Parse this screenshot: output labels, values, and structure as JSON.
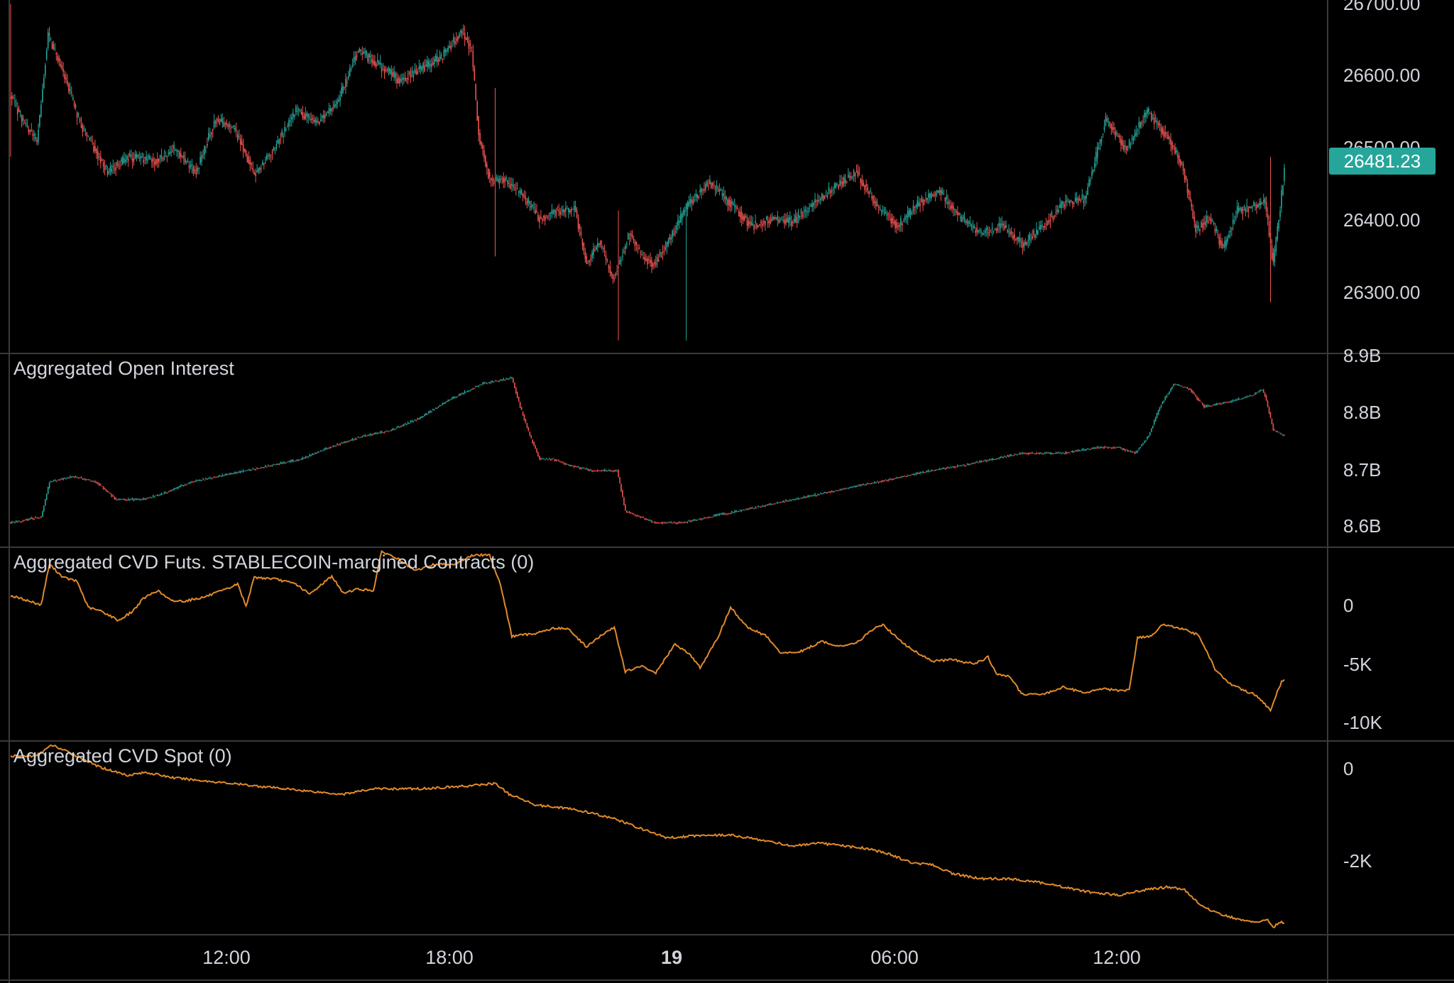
{
  "colors": {
    "background": "#000000",
    "up": "#26a69a",
    "down": "#ef5350",
    "cvd_line": "#e08a2c",
    "grid": "#3a3a3a",
    "axis_text": "#d1d4dc",
    "pane_title": "#d1d4dc",
    "price_tag_bg": "#26a69a",
    "price_tag_text": "#ffffff"
  },
  "price_tag": "26481.23",
  "chart_data": [
    {
      "type": "candlestick",
      "pane": "price",
      "title": "",
      "y_ticks": [
        "26700.00",
        "26600.00",
        "26500.00",
        "26400.00",
        "26300.00"
      ],
      "ylim": [
        26245,
        26705
      ],
      "last_price": 26481.23,
      "x_ticks": [
        "12:00",
        "18:00",
        "19",
        "06:00",
        "12:00"
      ],
      "anchors": [
        [
          0,
          26580
        ],
        [
          9,
          26545
        ],
        [
          19,
          26520
        ],
        [
          27,
          26660
        ],
        [
          38,
          26610
        ],
        [
          50,
          26545
        ],
        [
          70,
          26480
        ],
        [
          86,
          26500
        ],
        [
          104,
          26495
        ],
        [
          118,
          26510
        ],
        [
          134,
          26480
        ],
        [
          148,
          26550
        ],
        [
          162,
          26535
        ],
        [
          176,
          26478
        ],
        [
          190,
          26510
        ],
        [
          206,
          26560
        ],
        [
          221,
          26545
        ],
        [
          236,
          26570
        ],
        [
          251,
          26640
        ],
        [
          266,
          26620
        ],
        [
          281,
          26600
        ],
        [
          296,
          26615
        ],
        [
          311,
          26630
        ],
        [
          326,
          26665
        ],
        [
          333,
          26640
        ],
        [
          338,
          26530
        ],
        [
          346,
          26470
        ],
        [
          356,
          26470
        ],
        [
          370,
          26450
        ],
        [
          382,
          26420
        ],
        [
          396,
          26430
        ],
        [
          408,
          26430
        ],
        [
          416,
          26360
        ],
        [
          425,
          26390
        ],
        [
          435,
          26340
        ],
        [
          447,
          26400
        ],
        [
          456,
          26370
        ],
        [
          465,
          26360
        ],
        [
          475,
          26390
        ],
        [
          490,
          26440
        ],
        [
          505,
          26465
        ],
        [
          520,
          26440
        ],
        [
          535,
          26410
        ],
        [
          550,
          26420
        ],
        [
          565,
          26415
        ],
        [
          580,
          26440
        ],
        [
          595,
          26460
        ],
        [
          611,
          26480
        ],
        [
          626,
          26435
        ],
        [
          641,
          26410
        ],
        [
          656,
          26440
        ],
        [
          671,
          26455
        ],
        [
          686,
          26420
        ],
        [
          701,
          26400
        ],
        [
          716,
          26410
        ],
        [
          731,
          26385
        ],
        [
          746,
          26410
        ],
        [
          761,
          26440
        ],
        [
          776,
          26445
        ],
        [
          791,
          26550
        ],
        [
          806,
          26510
        ],
        [
          821,
          26560
        ],
        [
          836,
          26525
        ],
        [
          846,
          26490
        ],
        [
          856,
          26405
        ],
        [
          866,
          26420
        ],
        [
          876,
          26380
        ],
        [
          886,
          26430
        ],
        [
          896,
          26435
        ],
        [
          906,
          26440
        ],
        [
          912,
          26360
        ],
        [
          920,
          26481
        ]
      ],
      "wicks": [
        [
          0,
          26700,
          26500
        ],
        [
          350,
          26590,
          26370
        ],
        [
          439,
          26430,
          26260
        ],
        [
          488,
          26440,
          26260
        ],
        [
          910,
          26500,
          26310
        ]
      ]
    },
    {
      "type": "candlestick",
      "pane": "open_interest",
      "title": "Aggregated Open Interest",
      "y_ticks": [
        "8.9B",
        "8.8B",
        "8.7B",
        "8.6B"
      ],
      "ylim": [
        8.57,
        8.9
      ],
      "anchors": [
        [
          0,
          8.61
        ],
        [
          22,
          8.62
        ],
        [
          28,
          8.68
        ],
        [
          45,
          8.69
        ],
        [
          62,
          8.68
        ],
        [
          76,
          8.65
        ],
        [
          95,
          8.65
        ],
        [
          110,
          8.66
        ],
        [
          130,
          8.68
        ],
        [
          150,
          8.69
        ],
        [
          170,
          8.7
        ],
        [
          190,
          8.71
        ],
        [
          210,
          8.72
        ],
        [
          230,
          8.74
        ],
        [
          255,
          8.76
        ],
        [
          275,
          8.77
        ],
        [
          295,
          8.79
        ],
        [
          315,
          8.82
        ],
        [
          340,
          8.85
        ],
        [
          362,
          8.86
        ],
        [
          368,
          8.81
        ],
        [
          375,
          8.76
        ],
        [
          382,
          8.72
        ],
        [
          392,
          8.72
        ],
        [
          402,
          8.71
        ],
        [
          420,
          8.7
        ],
        [
          438,
          8.7
        ],
        [
          444,
          8.63
        ],
        [
          465,
          8.61
        ],
        [
          485,
          8.61
        ],
        [
          505,
          8.62
        ],
        [
          525,
          8.63
        ],
        [
          545,
          8.64
        ],
        [
          565,
          8.65
        ],
        [
          585,
          8.66
        ],
        [
          605,
          8.67
        ],
        [
          625,
          8.68
        ],
        [
          645,
          8.69
        ],
        [
          665,
          8.7
        ],
        [
          690,
          8.71
        ],
        [
          710,
          8.72
        ],
        [
          730,
          8.73
        ],
        [
          760,
          8.73
        ],
        [
          785,
          8.74
        ],
        [
          800,
          8.74
        ],
        [
          812,
          8.73
        ],
        [
          822,
          8.76
        ],
        [
          830,
          8.81
        ],
        [
          840,
          8.85
        ],
        [
          852,
          8.84
        ],
        [
          862,
          8.81
        ],
        [
          882,
          8.82
        ],
        [
          896,
          8.83
        ],
        [
          904,
          8.84
        ],
        [
          906,
          8.83
        ],
        [
          912,
          8.77
        ],
        [
          920,
          8.76
        ]
      ]
    },
    {
      "type": "line",
      "pane": "cvd_futures",
      "title": "Aggregated CVD Futs. STABLECOIN-margined Contracts (0)",
      "y_ticks": [
        "0",
        "-5K",
        "-10K"
      ],
      "ylim": [
        -11600,
        3000
      ],
      "points": [
        [
          0,
          -600
        ],
        [
          10,
          -900
        ],
        [
          22,
          -1300
        ],
        [
          28,
          1800
        ],
        [
          38,
          800
        ],
        [
          48,
          500
        ],
        [
          56,
          -1500
        ],
        [
          66,
          -1800
        ],
        [
          78,
          -2500
        ],
        [
          88,
          -1800
        ],
        [
          96,
          -800
        ],
        [
          106,
          -200
        ],
        [
          116,
          -1000
        ],
        [
          126,
          -1000
        ],
        [
          140,
          -700
        ],
        [
          156,
          -100
        ],
        [
          164,
          300
        ],
        [
          170,
          -1400
        ],
        [
          176,
          800
        ],
        [
          190,
          700
        ],
        [
          206,
          300
        ],
        [
          216,
          -500
        ],
        [
          226,
          400
        ],
        [
          232,
          900
        ],
        [
          240,
          -400
        ],
        [
          250,
          -100
        ],
        [
          262,
          -200
        ],
        [
          268,
          2800
        ],
        [
          280,
          2200
        ],
        [
          292,
          1300
        ],
        [
          306,
          1800
        ],
        [
          320,
          1800
        ],
        [
          334,
          2500
        ],
        [
          346,
          2500
        ],
        [
          354,
          200
        ],
        [
          362,
          -3700
        ],
        [
          378,
          -3500
        ],
        [
          392,
          -3100
        ],
        [
          402,
          -3100
        ],
        [
          416,
          -4500
        ],
        [
          426,
          -3700
        ],
        [
          436,
          -3000
        ],
        [
          444,
          -6400
        ],
        [
          456,
          -6000
        ],
        [
          466,
          -6500
        ],
        [
          480,
          -4300
        ],
        [
          490,
          -5000
        ],
        [
          498,
          -6100
        ],
        [
          510,
          -4000
        ],
        [
          520,
          -1500
        ],
        [
          532,
          -3000
        ],
        [
          546,
          -3700
        ],
        [
          556,
          -5000
        ],
        [
          570,
          -4900
        ],
        [
          586,
          -4100
        ],
        [
          600,
          -4500
        ],
        [
          612,
          -4100
        ],
        [
          624,
          -3100
        ],
        [
          630,
          -2800
        ],
        [
          642,
          -4000
        ],
        [
          652,
          -4800
        ],
        [
          666,
          -5600
        ],
        [
          680,
          -5500
        ],
        [
          696,
          -5800
        ],
        [
          706,
          -5300
        ],
        [
          712,
          -6600
        ],
        [
          722,
          -6800
        ],
        [
          730,
          -8100
        ],
        [
          744,
          -8200
        ],
        [
          760,
          -7600
        ],
        [
          776,
          -8000
        ],
        [
          790,
          -7700
        ],
        [
          802,
          -7900
        ],
        [
          808,
          -7800
        ],
        [
          814,
          -3800
        ],
        [
          824,
          -3700
        ],
        [
          832,
          -2800
        ],
        [
          840,
          -3000
        ],
        [
          848,
          -3200
        ],
        [
          858,
          -3600
        ],
        [
          870,
          -6200
        ],
        [
          880,
          -7300
        ],
        [
          894,
          -8000
        ],
        [
          900,
          -8200
        ],
        [
          910,
          -9400
        ],
        [
          914,
          -8200
        ],
        [
          918,
          -7200
        ],
        [
          920,
          -7000
        ]
      ]
    },
    {
      "type": "line",
      "pane": "cvd_spot",
      "title": "Aggregated CVD Spot (0)",
      "y_ticks": [
        "0",
        "-2K"
      ],
      "ylim": [
        -3250,
        250
      ],
      "points": [
        [
          0,
          0
        ],
        [
          18,
          0
        ],
        [
          30,
          200
        ],
        [
          48,
          0
        ],
        [
          64,
          -200
        ],
        [
          84,
          -350
        ],
        [
          98,
          -300
        ],
        [
          118,
          -400
        ],
        [
          138,
          -450
        ],
        [
          158,
          -500
        ],
        [
          178,
          -550
        ],
        [
          198,
          -600
        ],
        [
          218,
          -650
        ],
        [
          240,
          -700
        ],
        [
          262,
          -600
        ],
        [
          296,
          -600
        ],
        [
          330,
          -550
        ],
        [
          350,
          -500
        ],
        [
          360,
          -700
        ],
        [
          380,
          -900
        ],
        [
          400,
          -950
        ],
        [
          420,
          -1050
        ],
        [
          436,
          -1150
        ],
        [
          452,
          -1300
        ],
        [
          474,
          -1500
        ],
        [
          500,
          -1450
        ],
        [
          520,
          -1450
        ],
        [
          545,
          -1550
        ],
        [
          565,
          -1650
        ],
        [
          585,
          -1600
        ],
        [
          602,
          -1650
        ],
        [
          620,
          -1700
        ],
        [
          635,
          -1800
        ],
        [
          650,
          -1950
        ],
        [
          666,
          -2000
        ],
        [
          680,
          -2150
        ],
        [
          700,
          -2250
        ],
        [
          720,
          -2250
        ],
        [
          740,
          -2300
        ],
        [
          760,
          -2400
        ],
        [
          780,
          -2500
        ],
        [
          800,
          -2550
        ],
        [
          820,
          -2450
        ],
        [
          836,
          -2400
        ],
        [
          848,
          -2450
        ],
        [
          860,
          -2750
        ],
        [
          874,
          -2900
        ],
        [
          888,
          -3000
        ],
        [
          900,
          -3050
        ],
        [
          908,
          -3000
        ],
        [
          912,
          -3150
        ],
        [
          916,
          -3050
        ],
        [
          920,
          -3050
        ]
      ]
    }
  ]
}
